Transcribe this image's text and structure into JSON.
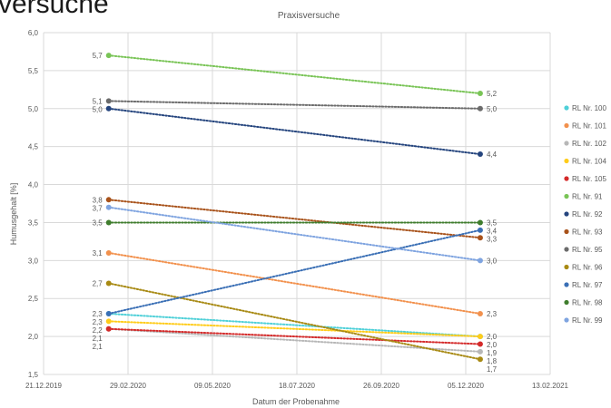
{
  "page": {
    "heading": "versuche"
  },
  "colors": {
    "RL Nr. 100": "#4fd0d8",
    "RL Nr. 101": "#f2914d",
    "RL Nr. 102": "#b7b7b7",
    "RL Nr. 104": "#ffcc1a",
    "RL Nr. 105": "#d42a2a",
    "RL Nr. 91": "#79c456",
    "RL Nr. 92": "#25457e",
    "RL Nr. 93": "#a8521a",
    "RL Nr. 95": "#6b6b6b",
    "RL Nr. 96": "#a88a14",
    "RL Nr. 97": "#3a6fb5",
    "RL Nr. 98": "#3f7d2d",
    "RL Nr. 99": "#7fa4e0"
  },
  "chart_data": {
    "type": "line",
    "title": "Praxisversuche",
    "xlabel": "Datum der Probenahme",
    "ylabel": "Humusgehalt [%]",
    "x_ticks": [
      "21.12.2019",
      "29.02.2020",
      "09.05.2020",
      "18.07.2020",
      "26.09.2020",
      "05.12.2020",
      "13.02.2021"
    ],
    "y_ticks": [
      "1,5",
      "2,0",
      "2,5",
      "3,0",
      "3,5",
      "4,0",
      "4,5",
      "5,0",
      "5,5",
      "6,0"
    ],
    "ylim": [
      1.5,
      6.0
    ],
    "xlim": [
      "2019-12-21",
      "2021-02-13"
    ],
    "grid": true,
    "legend_position": "right",
    "series": [
      {
        "name": "RL Nr. 100",
        "x": [
          "2020-02-13",
          "2020-12-17"
        ],
        "values": [
          2.3,
          2.0
        ],
        "labels": [
          "2,3",
          "2,0"
        ]
      },
      {
        "name": "RL Nr. 101",
        "x": [
          "2020-02-13",
          "2020-12-17"
        ],
        "values": [
          3.1,
          2.3
        ],
        "labels": [
          "3,1",
          "2,3"
        ]
      },
      {
        "name": "RL Nr. 102",
        "x": [
          "2020-02-13",
          "2020-12-17"
        ],
        "values": [
          2.1,
          1.8
        ],
        "labels": [
          "2,1",
          "1,8"
        ]
      },
      {
        "name": "RL Nr. 104",
        "x": [
          "2020-02-13",
          "2020-12-17"
        ],
        "values": [
          2.2,
          2.0
        ],
        "labels": [
          "2,2",
          "2,0"
        ]
      },
      {
        "name": "RL Nr. 105",
        "x": [
          "2020-02-13",
          "2020-12-17"
        ],
        "values": [
          2.1,
          1.9
        ],
        "labels": [
          "2,1",
          "1,9"
        ]
      },
      {
        "name": "RL Nr. 91",
        "x": [
          "2020-02-13",
          "2020-12-17"
        ],
        "values": [
          5.7,
          5.2
        ],
        "labels": [
          "5,7",
          "5,2"
        ]
      },
      {
        "name": "RL Nr. 92",
        "x": [
          "2020-02-13",
          "2020-12-17"
        ],
        "values": [
          5.0,
          4.4
        ],
        "labels": [
          "5,0",
          "4,4"
        ]
      },
      {
        "name": "RL Nr. 93",
        "x": [
          "2020-02-13",
          "2020-12-17"
        ],
        "values": [
          3.8,
          3.3
        ],
        "labels": [
          "3,8",
          "3,3"
        ]
      },
      {
        "name": "RL Nr. 95",
        "x": [
          "2020-02-13",
          "2020-12-17"
        ],
        "values": [
          5.1,
          5.0
        ],
        "labels": [
          "5,1",
          "5,0"
        ]
      },
      {
        "name": "RL Nr. 96",
        "x": [
          "2020-02-13",
          "2020-12-17"
        ],
        "values": [
          2.7,
          1.7
        ],
        "labels": [
          "2,7",
          "1,7"
        ]
      },
      {
        "name": "RL Nr. 97",
        "x": [
          "2020-02-13",
          "2020-12-17"
        ],
        "values": [
          2.3,
          3.4
        ],
        "labels": [
          "2,3",
          "3,4"
        ]
      },
      {
        "name": "RL Nr. 98",
        "x": [
          "2020-02-13",
          "2020-12-17"
        ],
        "values": [
          3.5,
          3.5
        ],
        "labels": [
          "3,5",
          "3,5"
        ]
      },
      {
        "name": "RL Nr. 99",
        "x": [
          "2020-02-13",
          "2020-12-17"
        ],
        "values": [
          3.7,
          3.0
        ],
        "labels": [
          "3,7",
          "3,0"
        ]
      }
    ]
  }
}
